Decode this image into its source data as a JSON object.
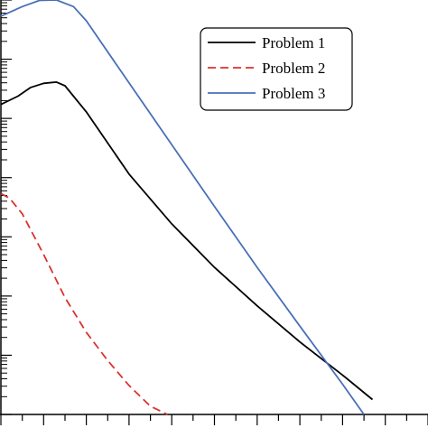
{
  "chart_data": {
    "type": "line",
    "title": "",
    "xlabel": "",
    "ylabel": "",
    "xlim": [
      0,
      1
    ],
    "ylim": [
      0,
      1
    ],
    "yscale": "log",
    "grid": false,
    "legend_position": "top-right",
    "series": [
      {
        "name": "Problem 1",
        "color": "#000000",
        "dash": "solid",
        "points": [
          [
            0.0,
            0.748
          ],
          [
            0.04,
            0.768
          ],
          [
            0.07,
            0.789
          ],
          [
            0.1,
            0.799
          ],
          [
            0.13,
            0.802
          ],
          [
            0.15,
            0.793
          ],
          [
            0.2,
            0.73
          ],
          [
            0.3,
            0.58
          ],
          [
            0.4,
            0.46
          ],
          [
            0.5,
            0.355
          ],
          [
            0.6,
            0.262
          ],
          [
            0.7,
            0.175
          ],
          [
            0.8,
            0.095
          ],
          [
            0.87,
            0.036
          ]
        ]
      },
      {
        "name": "Problem 2",
        "color": "#d9332f",
        "dash": "dashed",
        "points": [
          [
            0.0,
            0.533
          ],
          [
            0.02,
            0.522
          ],
          [
            0.05,
            0.484
          ],
          [
            0.1,
            0.386
          ],
          [
            0.15,
            0.282
          ],
          [
            0.2,
            0.198
          ],
          [
            0.25,
            0.13
          ],
          [
            0.3,
            0.07
          ],
          [
            0.35,
            0.02
          ],
          [
            0.39,
            0.0
          ]
        ]
      },
      {
        "name": "Problem 3",
        "color": "#4a6fb8",
        "dash": "solid",
        "points": [
          [
            0.0,
            0.961
          ],
          [
            0.05,
            0.984
          ],
          [
            0.09,
            0.999
          ],
          [
            0.13,
            1.0
          ],
          [
            0.17,
            0.984
          ],
          [
            0.2,
            0.95
          ],
          [
            0.3,
            0.8
          ],
          [
            0.4,
            0.651
          ],
          [
            0.5,
            0.502
          ],
          [
            0.6,
            0.355
          ],
          [
            0.7,
            0.213
          ],
          [
            0.8,
            0.073
          ],
          [
            0.85,
            0.0
          ]
        ]
      }
    ]
  }
}
